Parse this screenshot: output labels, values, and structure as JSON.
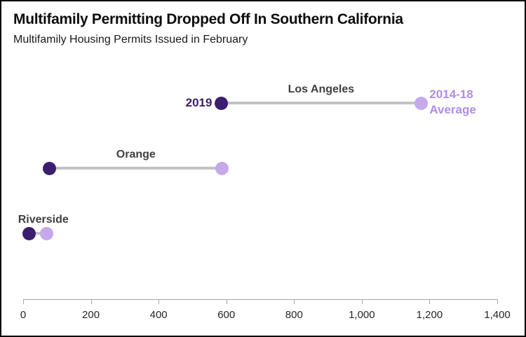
{
  "title": "Multifamily Permitting Dropped Off In Southern California",
  "subtitle": "Multifamily Housing Permits Issued in February",
  "colors": {
    "series_2019": "#3B1E6E",
    "series_avg_dot": "#C6A9EA",
    "series_avg_text": "#B18CE4",
    "connector": "#C3C3C3",
    "axis": "#A6A6A6",
    "category_label": "#404040",
    "tick_label": "#262626"
  },
  "chart_data": {
    "type": "scatter",
    "subtype": "dumbbell",
    "orientation": "horizontal",
    "title": "Multifamily Permitting Dropped Off In Southern California",
    "subtitle": "Multifamily Housing Permits Issued in February",
    "categories": [
      "Los Angeles",
      "Orange",
      "Riverside"
    ],
    "series": [
      {
        "name": "2019",
        "values": [
          585,
          78,
          17
        ]
      },
      {
        "name": "2014-18 Average",
        "values": [
          1175,
          588,
          69
        ]
      }
    ],
    "series_annotations": {
      "first_label": "2019",
      "second_label_line1": "2014-18",
      "second_label_line2": "Average"
    },
    "xlabel": "",
    "ylabel": "",
    "xlim": [
      0,
      1400
    ],
    "x_ticks": [
      0,
      200,
      400,
      600,
      800,
      1000,
      1200,
      1400
    ],
    "x_tick_labels": [
      "0",
      "200",
      "400",
      "600",
      "800",
      "1,000",
      "1,200",
      "1,400"
    ],
    "grid": false,
    "legend_position": "inline-annotations-on-first-row"
  }
}
